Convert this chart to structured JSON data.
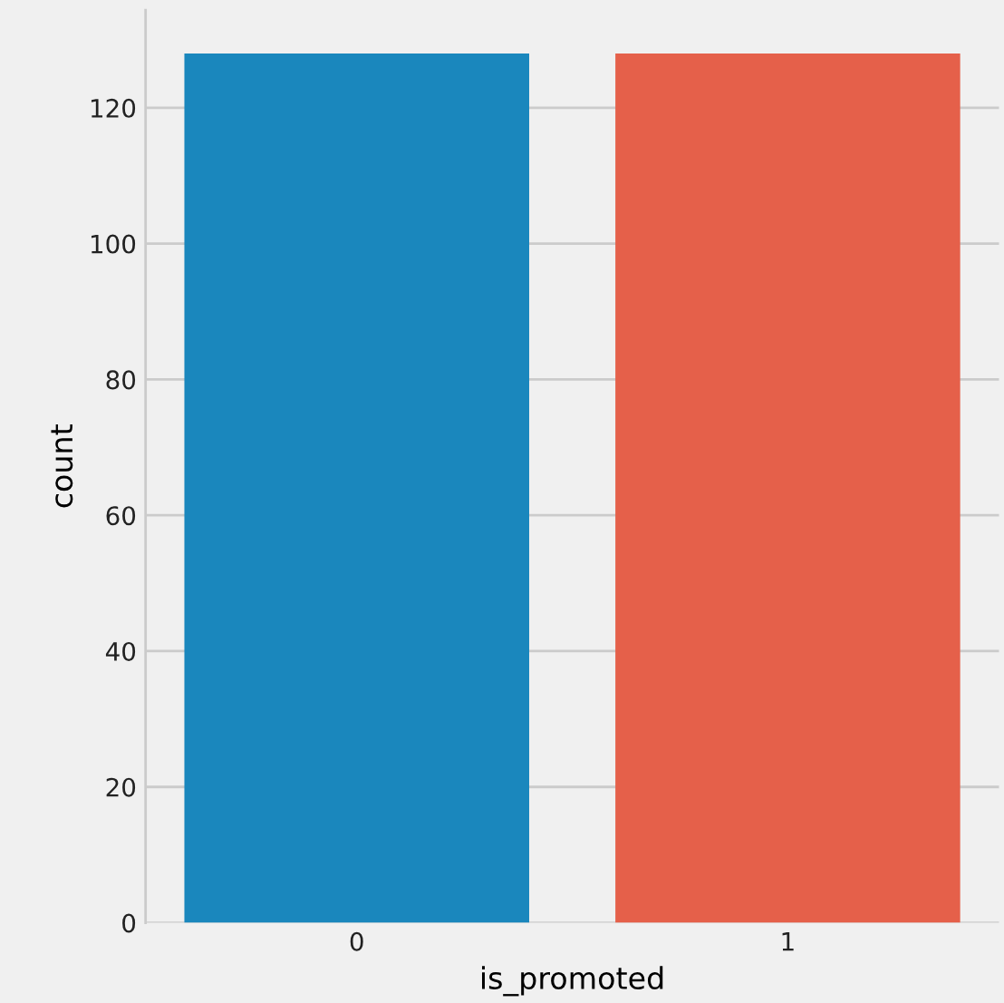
{
  "chart_data": {
    "type": "bar",
    "xlabel": "is_promoted",
    "ylabel": "count",
    "categories": [
      "0",
      "1"
    ],
    "values": [
      128,
      128
    ],
    "colors": [
      "#1a87bd",
      "#e5604a"
    ],
    "ylim": [
      0,
      134.4
    ],
    "yticks": [
      0,
      20,
      40,
      60,
      80,
      100,
      120
    ],
    "grid": "y"
  }
}
